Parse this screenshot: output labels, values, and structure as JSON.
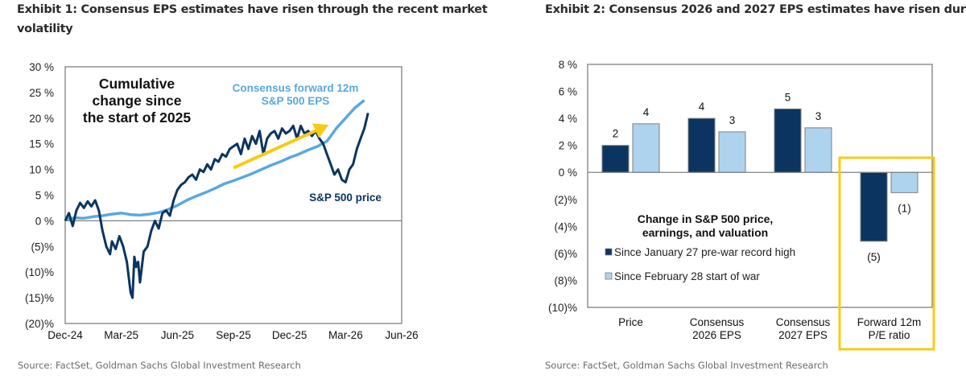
{
  "exhibit1": {
    "title_line1": "Exhibit 1: Consensus EPS estimates have risen through the recent market",
    "title_line2": "volatility",
    "source": "Source: FactSet, Goldman Sachs Global Investment Research"
  },
  "exhibit2": {
    "title": "Exhibit 2: Consensus 2026 and 2027 EPS estimates have risen dur",
    "source": "Source: FactSet, Goldman Sachs Global Investment Research"
  },
  "colors": {
    "navy": "#0b3560",
    "light_blue": "#5aa8e0",
    "pale_blue": "#aed3ef",
    "yellow": "#f7cb15",
    "axis": "#808080"
  },
  "chart_data": [
    {
      "type": "line",
      "title": "Cumulative change since the start of 2025",
      "annotation_lines": [
        "Cumulative",
        "change since",
        "the start of 2025"
      ],
      "xlabel": "",
      "ylabel": "",
      "x_ticks": [
        "Dec-24",
        "Mar-25",
        "Jun-25",
        "Sep-25",
        "Dec-25",
        "Mar-26",
        "Jun-26"
      ],
      "y_ticks": [
        30,
        25,
        20,
        15,
        10,
        5,
        0,
        -5,
        -10,
        -15,
        -20
      ],
      "y_tick_labels": [
        "30 %",
        "25 %",
        "20 %",
        "15 %",
        "10 %",
        "5 %",
        "0 %",
        "(5)%",
        "(10)%",
        "(15)%",
        "(20)%"
      ],
      "ylim": [
        -20,
        30
      ],
      "xlim_months": [
        0,
        18
      ],
      "grid": false,
      "series": [
        {
          "name": "S&P 500 price",
          "label_lines": [
            "S&P 500 price"
          ],
          "color": "navy",
          "x_months": [
            0.0,
            0.2,
            0.4,
            0.6,
            0.8,
            1.0,
            1.2,
            1.4,
            1.6,
            1.8,
            2.0,
            2.2,
            2.4,
            2.5,
            2.7,
            2.9,
            3.1,
            3.3,
            3.5,
            3.6,
            3.7,
            3.8,
            3.9,
            4.0,
            4.2,
            4.4,
            4.6,
            4.8,
            5.0,
            5.2,
            5.4,
            5.6,
            5.8,
            6.0,
            6.2,
            6.4,
            6.6,
            6.8,
            7.0,
            7.2,
            7.4,
            7.6,
            7.8,
            8.0,
            8.2,
            8.4,
            8.6,
            8.8,
            9.0,
            9.2,
            9.4,
            9.6,
            9.8,
            10.0,
            10.2,
            10.4,
            10.6,
            10.8,
            11.0,
            11.2,
            11.4,
            11.6,
            11.8,
            12.0,
            12.2,
            12.4,
            12.6,
            12.8,
            13.0,
            13.2,
            13.4,
            13.6,
            13.8,
            14.0,
            14.2,
            14.4,
            14.6,
            14.8,
            15.0,
            15.2,
            15.4,
            15.6,
            15.8,
            16.0,
            16.2
          ],
          "values": [
            0.0,
            1.5,
            -1.0,
            2.0,
            3.5,
            2.5,
            3.8,
            2.8,
            4.0,
            2.0,
            -2.0,
            -5.0,
            -6.5,
            -4.0,
            -5.5,
            -3.0,
            -5.0,
            -8.0,
            -14.0,
            -15.0,
            -7.0,
            -9.0,
            -8.0,
            -12.0,
            -6.0,
            -5.0,
            -2.0,
            0.0,
            -1.5,
            1.5,
            2.0,
            1.0,
            4.0,
            6.0,
            7.0,
            7.5,
            8.5,
            9.0,
            8.0,
            10.0,
            9.5,
            11.0,
            10.0,
            12.0,
            11.5,
            13.0,
            12.5,
            14.0,
            14.5,
            15.0,
            13.0,
            16.0,
            14.0,
            16.5,
            15.0,
            17.5,
            13.0,
            16.0,
            17.0,
            17.5,
            16.0,
            18.0,
            17.0,
            17.5,
            18.5,
            16.0,
            18.5,
            17.0,
            17.5,
            16.5,
            17.5,
            16.0,
            15.0,
            13.0,
            11.0,
            9.0,
            10.0,
            8.0,
            7.5,
            10.0,
            11.0,
            14.0,
            16.0,
            18.0,
            21.0
          ]
        },
        {
          "name": "Consensus forward 12m S&P 500 EPS",
          "label_lines": [
            "Consensus forward 12m",
            "S&P 500 EPS"
          ],
          "color": "light_blue",
          "x_months": [
            0.0,
            0.5,
            1.0,
            1.5,
            2.0,
            2.5,
            3.0,
            3.5,
            4.0,
            4.5,
            5.0,
            5.5,
            6.0,
            6.5,
            7.0,
            7.5,
            8.0,
            8.5,
            9.0,
            9.5,
            10.0,
            10.5,
            11.0,
            11.5,
            12.0,
            12.5,
            13.0,
            13.5,
            14.0,
            14.5,
            15.0,
            15.5,
            16.0
          ],
          "values": [
            0.2,
            0.6,
            0.5,
            0.8,
            1.0,
            1.3,
            1.5,
            1.2,
            1.1,
            1.3,
            1.6,
            2.2,
            3.0,
            4.0,
            4.8,
            5.5,
            6.3,
            7.2,
            7.8,
            8.5,
            9.2,
            10.0,
            10.8,
            11.5,
            12.3,
            13.0,
            13.8,
            14.5,
            15.5,
            18.0,
            20.0,
            22.0,
            23.5
          ]
        }
      ],
      "arrow_annotation": {
        "color": "yellow",
        "from": [
          9.0,
          10.3
        ],
        "to": [
          14.1,
          18.7
        ]
      }
    },
    {
      "type": "bar",
      "title": "Change in S&P 500 price, earnings, and valuation",
      "title_lines": [
        "Change in  S&P 500 price,",
        "earnings, and valuation"
      ],
      "categories": [
        "Price",
        "Consensus 2026 EPS",
        "Consensus 2027 EPS",
        "Forward 12m P/E ratio"
      ],
      "category_lines": [
        [
          "Price"
        ],
        [
          "Consensus",
          "2026 EPS"
        ],
        [
          "Consensus",
          "2027 EPS"
        ],
        [
          "Forward 12m",
          "P/E ratio"
        ]
      ],
      "series": [
        {
          "name": "Since January 27 pre-war record high",
          "color": "navy",
          "values": [
            2.0,
            4.0,
            4.7,
            -5.1
          ],
          "labels": [
            "2",
            "4",
            "5",
            "(5)"
          ]
        },
        {
          "name": "Since February 28 start of war",
          "color": "pale_blue",
          "values": [
            3.6,
            3.0,
            3.3,
            -1.5
          ],
          "labels": [
            "4",
            "3",
            "3",
            "(1)"
          ]
        }
      ],
      "y_ticks": [
        8,
        6,
        4,
        2,
        0,
        -2,
        -4,
        -6,
        -8,
        -10
      ],
      "y_tick_labels": [
        "8 %",
        "6 %",
        "4 %",
        "2 %",
        "0 %",
        "(2)%",
        "(4)%",
        "(6)%",
        "(8)%",
        "(10)%"
      ],
      "ylim": [
        -10,
        8
      ],
      "grid": false,
      "legend_position": "center-left",
      "highlight_category": "Forward 12m P/E ratio"
    }
  ]
}
